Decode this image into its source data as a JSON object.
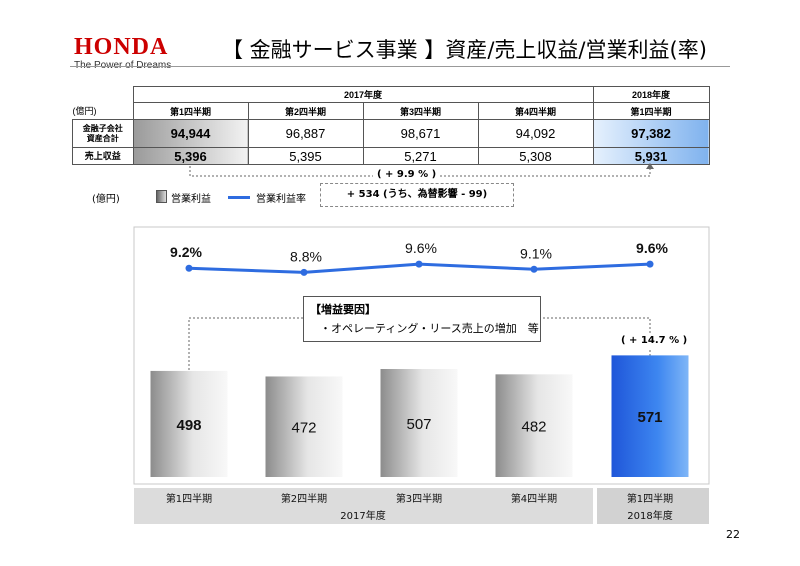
{
  "header": {
    "logo": "HONDA",
    "tagline": "The Power of Dreams",
    "title": "【 金融サービス事業 】資産/売上収益/営業利益(率)"
  },
  "table": {
    "unit": "(億円)",
    "year_2017": "2017年度",
    "year_2018": "2018年度",
    "quarters": [
      "第1四半期",
      "第2四半期",
      "第3四半期",
      "第4四半期",
      "第1四半期"
    ],
    "rows": [
      {
        "label_line1": "金融子会社",
        "label_line2": "資産合計",
        "values": [
          "94,944",
          "96,887",
          "98,671",
          "94,092",
          "97,382"
        ]
      },
      {
        "label_line1": "売上収益",
        "label_line2": "",
        "values": [
          "5,396",
          "5,395",
          "5,271",
          "5,308",
          "5,931"
        ]
      }
    ]
  },
  "revenue_note": {
    "growth": "( + 9.9 % )",
    "detail": "+ 534 (うち、為替影響 - 99)"
  },
  "legend": {
    "unit": "(億円)",
    "bar_label": "営業利益",
    "line_label": "営業利益率"
  },
  "factors": {
    "title": "【増益要因】",
    "item": "・オペレーティング・リース売上の増加　等"
  },
  "profit_growth": "( + 14.7 % )",
  "page_number": "22",
  "colors": {
    "brand_red": "#cc0000",
    "line_blue": "#2e6ce0",
    "highlight_bar": "#2f6fe6"
  },
  "chart_data": {
    "type": "bar",
    "title": "",
    "categories": [
      "第1四半期",
      "第2四半期",
      "第3四半期",
      "第4四半期",
      "第1四半期"
    ],
    "category_groups": [
      {
        "label": "2017年度",
        "count": 4
      },
      {
        "label": "2018年度",
        "count": 1
      }
    ],
    "series": [
      {
        "name": "営業利益",
        "type": "bar",
        "values": [
          498,
          472,
          507,
          482,
          571
        ],
        "labels": [
          "498",
          "472",
          "507",
          "482",
          "571"
        ]
      },
      {
        "name": "営業利益率",
        "type": "line",
        "values": [
          9.2,
          8.8,
          9.6,
          9.1,
          9.6
        ],
        "labels": [
          "9.2%",
          "8.8%",
          "9.6%",
          "9.1%",
          "9.6%"
        ]
      }
    ],
    "highlight_index": 4,
    "bold_label_indices": [
      0,
      4
    ],
    "ylabel": "億円",
    "ylim": [
      0,
      600
    ],
    "line_ylim": [
      0,
      10
    ]
  }
}
